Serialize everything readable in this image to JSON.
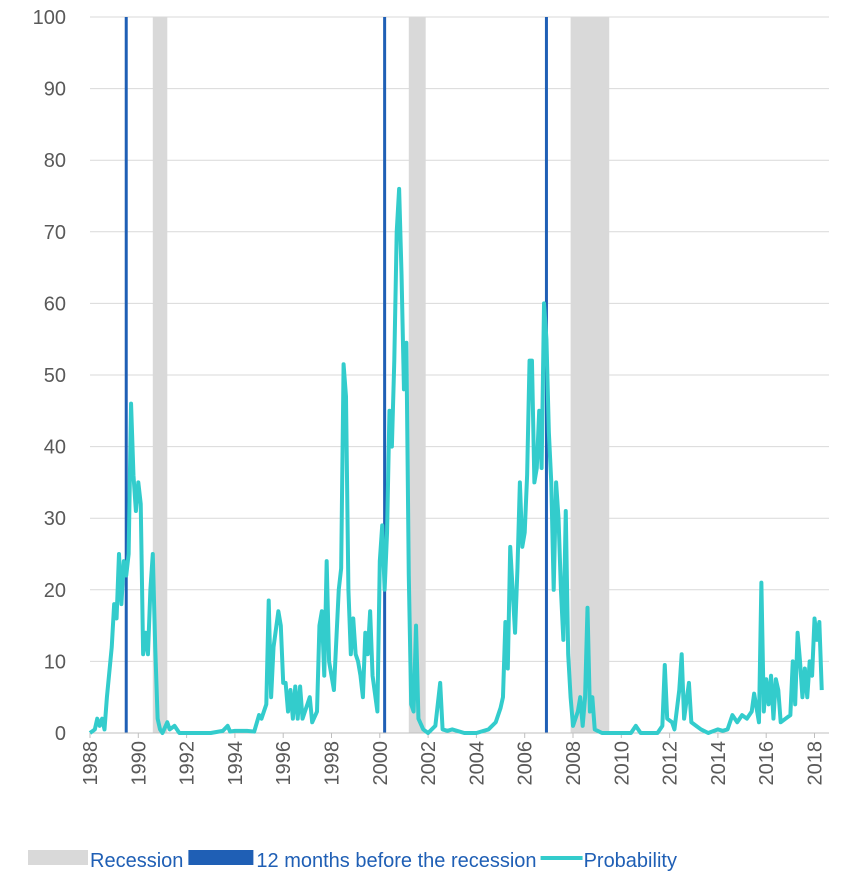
{
  "chart_data": {
    "type": "line",
    "xlim": [
      1988,
      2018.6
    ],
    "xticks": [
      1988,
      1990,
      1992,
      1994,
      1996,
      1998,
      2000,
      2002,
      2004,
      2006,
      2008,
      2010,
      2012,
      2014,
      2016,
      2018
    ],
    "ylim": [
      0,
      100
    ],
    "yticks": [
      0,
      10,
      20,
      30,
      40,
      50,
      60,
      70,
      80,
      90,
      100
    ],
    "grid": true,
    "legend": "bottom",
    "bands": {
      "name": "Recession",
      "color": "#d9d9d9",
      "ranges": [
        [
          1990.6,
          1991.2
        ],
        [
          2001.2,
          2001.9
        ],
        [
          2007.9,
          2009.5
        ]
      ]
    },
    "markers": {
      "name": "12 months before the recession",
      "color": "#1f5fb5",
      "x": [
        1989.5,
        2000.2,
        2006.9
      ]
    },
    "x": [
      1988.0,
      1988.2,
      1988.3,
      1988.4,
      1988.5,
      1988.6,
      1988.7,
      1988.9,
      1989.0,
      1989.1,
      1989.2,
      1989.3,
      1989.4,
      1989.5,
      1989.6,
      1989.7,
      1989.8,
      1989.9,
      1990.0,
      1990.1,
      1990.2,
      1990.3,
      1990.4,
      1990.5,
      1990.6,
      1990.7,
      1990.8,
      1990.9,
      1991.0,
      1991.2,
      1991.3,
      1991.5,
      1991.7,
      1992.0,
      1993.0,
      1993.5,
      1993.7,
      1993.8,
      1994.0,
      1994.5,
      1994.8,
      1995.0,
      1995.1,
      1995.3,
      1995.4,
      1995.5,
      1995.6,
      1995.8,
      1995.9,
      1996.0,
      1996.1,
      1996.2,
      1996.3,
      1996.4,
      1996.5,
      1996.6,
      1996.7,
      1996.8,
      1997.0,
      1997.1,
      1997.2,
      1997.4,
      1997.5,
      1997.6,
      1997.7,
      1997.8,
      1997.9,
      1998.1,
      1998.3,
      1998.4,
      1998.5,
      1998.6,
      1998.7,
      1998.8,
      1998.9,
      1999.0,
      1999.1,
      1999.2,
      1999.3,
      1999.4,
      1999.5,
      1999.6,
      1999.7,
      1999.9,
      2000.0,
      2000.1,
      2000.2,
      2000.3,
      2000.4,
      2000.5,
      2000.6,
      2000.7,
      2000.8,
      2000.9,
      2001.0,
      2001.1,
      2001.2,
      2001.3,
      2001.4,
      2001.5,
      2001.6,
      2001.8,
      2002.0,
      2002.3,
      2002.5,
      2002.6,
      2002.8,
      2003.0,
      2003.5,
      2004.0,
      2004.5,
      2004.8,
      2005.0,
      2005.1,
      2005.2,
      2005.3,
      2005.4,
      2005.5,
      2005.6,
      2005.7,
      2005.8,
      2005.9,
      2006.0,
      2006.1,
      2006.2,
      2006.3,
      2006.4,
      2006.5,
      2006.6,
      2006.7,
      2006.8,
      2006.9,
      2007.0,
      2007.1,
      2007.2,
      2007.3,
      2007.4,
      2007.5,
      2007.6,
      2007.7,
      2007.8,
      2007.9,
      2008.0,
      2008.2,
      2008.3,
      2008.4,
      2008.5,
      2008.6,
      2008.7,
      2008.8,
      2008.9,
      2009.2,
      2010.0,
      2010.4,
      2010.6,
      2010.8,
      2011.5,
      2011.7,
      2011.8,
      2011.9,
      2012.1,
      2012.2,
      2012.4,
      2012.5,
      2012.6,
      2012.8,
      2012.9,
      2013.1,
      2013.3,
      2013.6,
      2014.0,
      2014.2,
      2014.4,
      2014.6,
      2014.8,
      2015.0,
      2015.2,
      2015.4,
      2015.5,
      2015.7,
      2015.8,
      2015.9,
      2016.0,
      2016.1,
      2016.2,
      2016.3,
      2016.4,
      2016.5,
      2016.6,
      2016.8,
      2017.0,
      2017.1,
      2017.2,
      2017.3,
      2017.4,
      2017.5,
      2017.6,
      2017.7,
      2017.8,
      2017.9,
      2018.0,
      2018.1,
      2018.2,
      2018.3
    ],
    "series": [
      {
        "name": "Probability",
        "color": "#33cccc",
        "values": [
          0,
          0.5,
          2,
          1,
          2,
          0.5,
          5,
          12,
          18,
          16,
          25,
          18,
          24,
          22,
          25,
          46,
          36,
          31,
          35,
          32,
          11,
          14,
          11,
          20,
          25,
          12,
          2,
          0.5,
          0,
          1.5,
          0.5,
          1,
          0,
          0,
          0,
          0.3,
          1,
          0.2,
          0.3,
          0.3,
          0.2,
          2.5,
          2,
          4,
          18.5,
          5,
          12,
          17,
          15,
          7,
          7,
          3,
          6,
          2,
          6.5,
          2,
          6.5,
          2,
          4,
          5,
          1.5,
          3,
          15,
          17,
          8,
          24,
          10,
          6,
          20,
          23,
          51.5,
          47,
          20,
          11,
          16,
          11,
          10,
          8,
          5,
          14,
          11,
          17,
          8,
          3,
          24,
          29,
          20,
          28,
          45,
          40,
          52,
          70,
          76,
          64,
          48,
          54.5,
          22,
          4,
          3,
          15,
          2,
          0.5,
          0,
          1,
          7,
          0.5,
          0.3,
          0.5,
          0,
          0,
          0.5,
          1.5,
          3.5,
          5,
          15.5,
          9,
          26,
          20,
          14,
          23,
          35,
          26,
          28,
          36,
          52,
          52,
          35,
          37,
          45,
          37,
          60,
          55,
          42,
          35,
          20,
          35,
          30,
          20,
          13,
          31,
          11,
          5,
          1,
          3,
          5,
          1,
          5,
          17.5,
          3,
          5,
          0.5,
          0,
          0,
          0,
          1,
          0,
          0,
          1,
          9.5,
          2,
          1.5,
          0.5,
          6,
          11,
          2,
          7,
          1.5,
          1,
          0.5,
          0,
          0.5,
          0.3,
          0.5,
          2.5,
          1.5,
          2.5,
          2,
          3,
          5.5,
          1.5,
          21,
          3,
          7.5,
          4,
          8,
          2,
          7.5,
          6,
          1.5,
          2,
          2.5,
          10,
          4,
          14,
          10,
          5,
          9,
          5,
          10,
          8,
          16,
          13,
          15.5,
          6
        ]
      }
    ]
  }
}
